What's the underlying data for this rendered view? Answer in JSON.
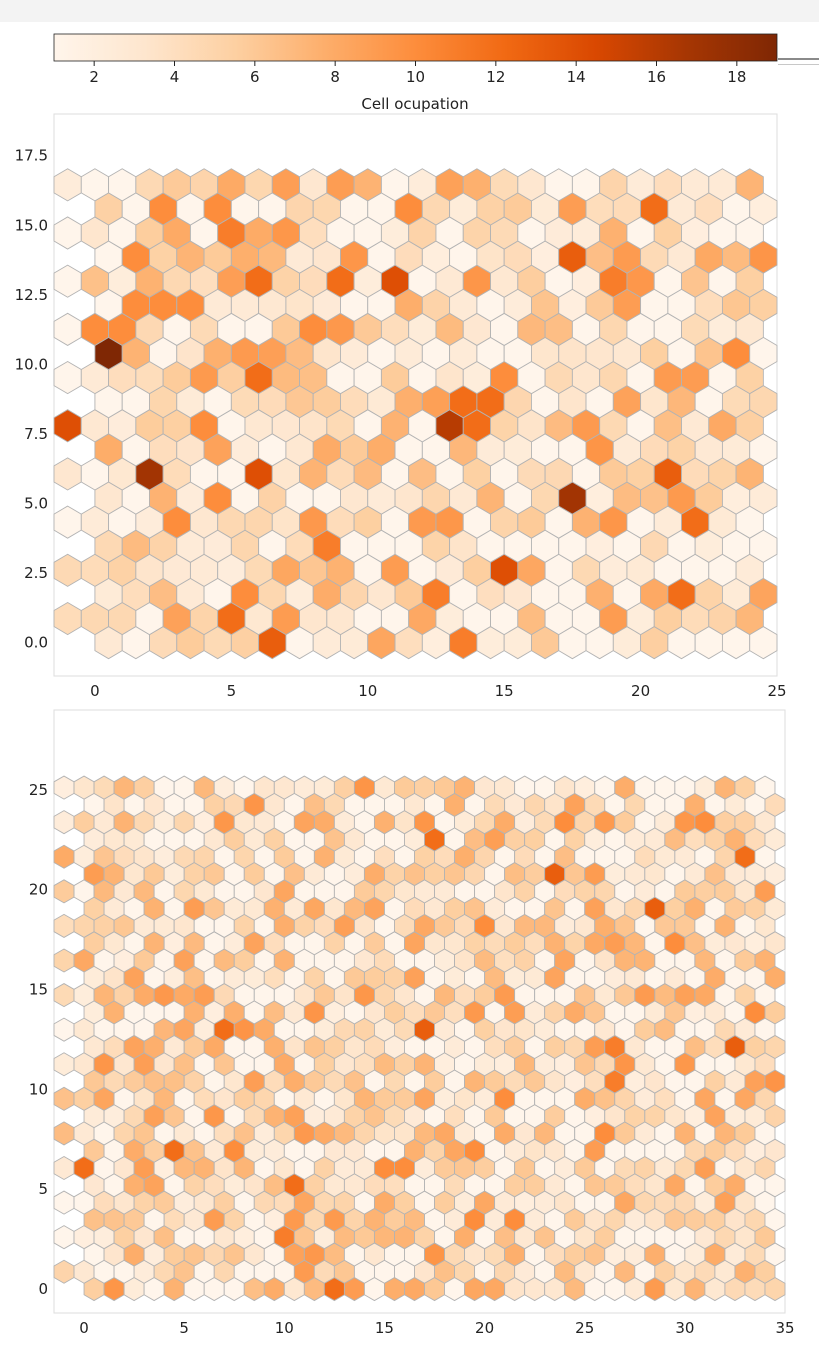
{
  "colors": {
    "cmap": [
      "#fff5eb",
      "#fee6ce",
      "#fdd0a2",
      "#fdae6b",
      "#fd8d3c",
      "#f16913",
      "#d94801",
      "#a63603",
      "#7f2704"
    ],
    "hex_edge": "#b3b3b3",
    "frame": "#dddddd"
  },
  "chart_data": [
    {
      "type": "heatmap",
      "subtype": "hexbin-colorbar",
      "name": "colorbar",
      "label": "Cell ocupation",
      "range": [
        1,
        19
      ],
      "ticks": [
        2,
        4,
        6,
        8,
        10,
        12,
        14,
        16,
        18
      ],
      "tick_labels": [
        "2",
        "4",
        "6",
        "8",
        "10",
        "12",
        "14",
        "16",
        "18"
      ]
    },
    {
      "type": "heatmap",
      "subtype": "hexbin",
      "name": "som-grid-top",
      "grid_cols": 25,
      "grid_rows": 20,
      "value_range": [
        1,
        19
      ],
      "xlim": [
        -1.5,
        25
      ],
      "ylim": [
        -1.2,
        19
      ],
      "xticks": [
        0,
        5,
        10,
        15,
        20,
        25
      ],
      "xtick_labels": [
        "0",
        "5",
        "10",
        "15",
        "20",
        "25"
      ],
      "yticks": [
        0,
        2.5,
        5,
        7.5,
        10,
        12.5,
        15,
        17.5
      ],
      "ytick_labels": [
        "0.0",
        "2.5",
        "5.0",
        "7.5",
        "10.0",
        "12.5",
        "15.0",
        "17.5"
      ],
      "highlights": [
        {
          "col": 0,
          "row": 12,
          "v": 19
        },
        {
          "col": 2,
          "row": 7,
          "v": 17
        },
        {
          "col": 17,
          "row": 6,
          "v": 17
        },
        {
          "col": 13,
          "row": 9,
          "v": 16
        },
        {
          "col": -1,
          "row": 9,
          "v": 14
        },
        {
          "col": 11,
          "row": 15,
          "v": 14
        },
        {
          "col": 6,
          "row": 7,
          "v": 14
        },
        {
          "col": 21,
          "row": 7,
          "v": 13
        },
        {
          "col": 15,
          "row": 3,
          "v": 14
        },
        {
          "col": 6,
          "row": 0,
          "v": 13
        },
        {
          "col": -1,
          "row": 16,
          "v": 13
        },
        {
          "col": 17,
          "row": 16,
          "v": 13
        },
        {
          "col": 20,
          "row": 18,
          "v": 12
        },
        {
          "col": 13,
          "row": 10,
          "v": 12
        },
        {
          "col": 14,
          "row": 10,
          "v": 12
        },
        {
          "col": 14,
          "row": 9,
          "v": 12
        },
        {
          "col": 9,
          "row": 15,
          "v": 12
        },
        {
          "col": 6,
          "row": 15,
          "v": 12
        },
        {
          "col": 22,
          "row": 5,
          "v": 12
        },
        {
          "col": 21,
          "row": 2,
          "v": 12
        },
        {
          "col": 6,
          "row": 11,
          "v": 12
        },
        {
          "col": 5,
          "row": 1,
          "v": 12
        },
        {
          "col": 13,
          "row": 0,
          "v": 11
        },
        {
          "col": 8,
          "row": 4,
          "v": 11
        },
        {
          "col": 12,
          "row": 2,
          "v": 11
        },
        {
          "col": 19,
          "row": 15,
          "v": 11
        },
        {
          "col": 5,
          "row": 17,
          "v": 11
        },
        {
          "col": 1,
          "row": 16,
          "v": 10
        },
        {
          "col": 2,
          "row": 18,
          "v": 10
        },
        {
          "col": 4,
          "row": 18,
          "v": 10
        },
        {
          "col": 11,
          "row": 18,
          "v": 10
        },
        {
          "col": 1,
          "row": 14,
          "v": 10
        },
        {
          "col": 2,
          "row": 14,
          "v": 10
        },
        {
          "col": 3,
          "row": 14,
          "v": 10
        },
        {
          "col": 0,
          "row": 13,
          "v": 10
        },
        {
          "col": 1,
          "row": 13,
          "v": 10
        },
        {
          "col": 8,
          "row": 13,
          "v": 10
        },
        {
          "col": 23,
          "row": 12,
          "v": 10
        },
        {
          "col": 15,
          "row": 11,
          "v": 10
        },
        {
          "col": 4,
          "row": 9,
          "v": 10
        },
        {
          "col": 4,
          "row": 6,
          "v": 10
        },
        {
          "col": 3,
          "row": 5,
          "v": 10
        },
        {
          "col": 5,
          "row": 2,
          "v": 10
        },
        {
          "col": 7,
          "row": 1,
          "v": 9
        },
        {
          "col": 19,
          "row": 1,
          "v": 9
        }
      ]
    },
    {
      "type": "heatmap",
      "subtype": "hexbin",
      "name": "som-grid-bottom",
      "grid_cols": 35,
      "grid_rows": 30,
      "value_range": [
        1,
        19
      ],
      "xlim": [
        -1.5,
        35
      ],
      "ylim": [
        -1.2,
        29
      ],
      "xticks": [
        0,
        5,
        10,
        15,
        20,
        25,
        30,
        35
      ],
      "xtick_labels": [
        "0",
        "5",
        "10",
        "15",
        "20",
        "25",
        "30",
        "35"
      ],
      "yticks": [
        0,
        5,
        10,
        15,
        20,
        25
      ],
      "ytick_labels": [
        "0",
        "5",
        "10",
        "15",
        "20",
        "25"
      ],
      "highlights": [
        {
          "col": 17,
          "row": 26,
          "v": 12
        },
        {
          "col": 33,
          "row": 25,
          "v": 12
        },
        {
          "col": 23,
          "row": 24,
          "v": 13
        },
        {
          "col": 28,
          "row": 22,
          "v": 13
        },
        {
          "col": 7,
          "row": 15,
          "v": 12
        },
        {
          "col": 17,
          "row": 15,
          "v": 13
        },
        {
          "col": 32,
          "row": 14,
          "v": 13
        },
        {
          "col": 26,
          "row": 14,
          "v": 11
        },
        {
          "col": 0,
          "row": 7,
          "v": 12
        },
        {
          "col": 4,
          "row": 8,
          "v": 12
        },
        {
          "col": 10,
          "row": 6,
          "v": 12
        },
        {
          "col": 12,
          "row": 0,
          "v": 12
        },
        {
          "col": 10,
          "row": 3,
          "v": 11
        },
        {
          "col": 26,
          "row": 12,
          "v": 11
        },
        {
          "col": 26,
          "row": 9,
          "v": 10
        },
        {
          "col": 21,
          "row": 11,
          "v": 10
        },
        {
          "col": 24,
          "row": 27,
          "v": 10
        },
        {
          "col": 31,
          "row": 27,
          "v": 10
        },
        {
          "col": 20,
          "row": 21,
          "v": 10
        },
        {
          "col": 29,
          "row": 20,
          "v": 10
        },
        {
          "col": 33,
          "row": 16,
          "v": 10
        },
        {
          "col": 19,
          "row": 4,
          "v": 10
        },
        {
          "col": 21,
          "row": 4,
          "v": 10
        },
        {
          "col": 19,
          "row": 8,
          "v": 10
        },
        {
          "col": 15,
          "row": 7,
          "v": 10
        },
        {
          "col": 16,
          "row": 7,
          "v": 10
        },
        {
          "col": 7,
          "row": 8,
          "v": 10
        }
      ]
    }
  ]
}
